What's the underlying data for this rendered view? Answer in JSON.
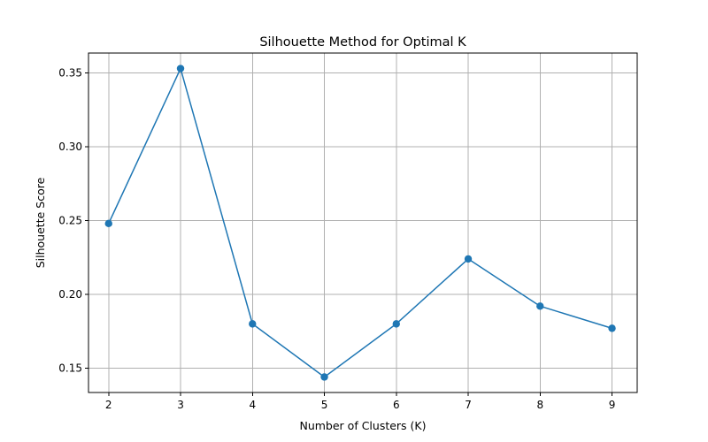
{
  "chart_data": {
    "type": "line",
    "title": "Silhouette Method for Optimal K",
    "xlabel": "Number of Clusters (K)",
    "ylabel": "Silhouette Score",
    "x": [
      2,
      3,
      4,
      5,
      6,
      7,
      8,
      9
    ],
    "x_ticks": [
      "2",
      "3",
      "4",
      "5",
      "6",
      "7",
      "8",
      "9"
    ],
    "y_ticks": [
      "0.15",
      "0.20",
      "0.25",
      "0.30",
      "0.35"
    ],
    "y_tick_values": [
      0.15,
      0.2,
      0.25,
      0.3,
      0.35
    ],
    "xlim": [
      1.72,
      9.35
    ],
    "ylim": [
      0.1335,
      0.3635
    ],
    "grid": true,
    "series": [
      {
        "values": [
          0.248,
          0.353,
          0.18,
          0.144,
          0.18,
          0.224,
          0.192,
          0.177
        ],
        "color": "#1f77b4",
        "marker": "circle"
      }
    ]
  }
}
